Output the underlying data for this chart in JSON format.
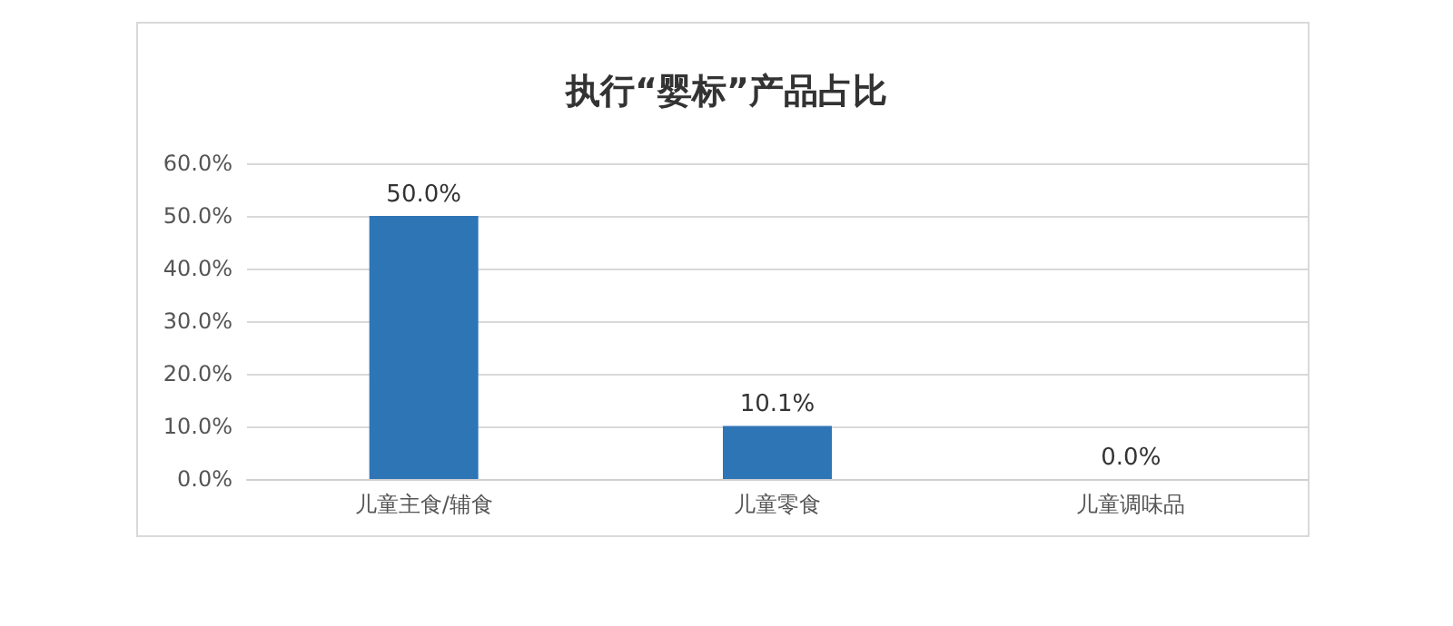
{
  "chart_data": {
    "type": "bar",
    "title": "执行“婴标”产品占比",
    "categories": [
      "儿童主食/辅食",
      "儿童零食",
      "儿童调味品"
    ],
    "values": [
      50.0,
      10.1,
      0.0
    ],
    "value_labels": [
      "50.0%",
      "10.1%",
      "0.0%"
    ],
    "color": "#2e75b6",
    "ylim": [
      0,
      60
    ],
    "yticks": [
      {
        "value": 0,
        "label": "0.0%"
      },
      {
        "value": 10,
        "label": "10.0%"
      },
      {
        "value": 20,
        "label": "20.0%"
      },
      {
        "value": 30,
        "label": "30.0%"
      },
      {
        "value": 40,
        "label": "40.0%"
      },
      {
        "value": 50,
        "label": "50.0%"
      },
      {
        "value": 60,
        "label": "60.0%"
      }
    ],
    "grid": "y"
  }
}
